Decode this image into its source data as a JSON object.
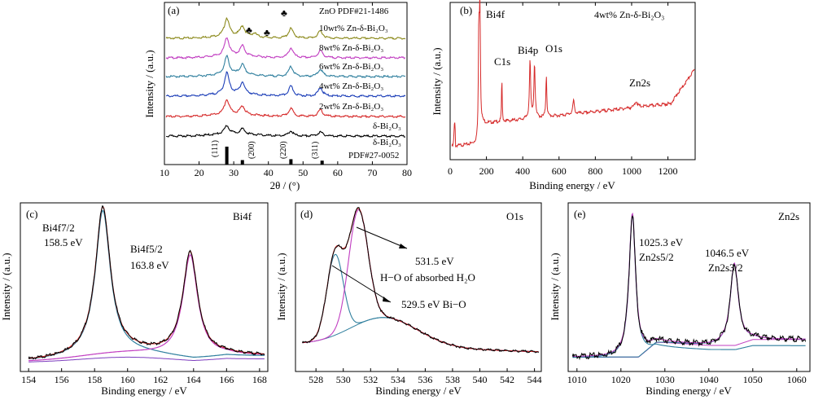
{
  "charts": {
    "a": {
      "panel": "(a)",
      "xlabel": "2θ / (°)",
      "ylabel": "Intensity / (a.u.)",
      "top_note": "ZnO PDF#21-1486",
      "x_ticks": [
        "10",
        "20",
        "30",
        "40",
        "50",
        "60",
        "70",
        "80"
      ],
      "marker": "♣",
      "labels": {
        "s10": "10wt% Zn-δ-Bi₂O₃",
        "s8": "8wt% Zn-δ-Bi₂O₃",
        "s6": "6wt% Zn-δ-Bi₂O₃",
        "s4": "4wt% Zn-δ-Bi₂O₃",
        "s2": "2wt% Zn-δ-Bi₂O₃",
        "s0": "δ-Bi₂O₃",
        "ref": "δ-Bi₂O₃",
        "pdf": "PDF#27-0052"
      },
      "hkl": [
        "(111)",
        "(200)",
        "(220)",
        "(311)"
      ]
    },
    "b": {
      "panel": "(b)",
      "title": "4wt% Zn-δ-Bi₂O₃",
      "xlabel": "Binding energy / eV",
      "ylabel": "Intensity / (a.u.)",
      "x_ticks": [
        "0",
        "200",
        "400",
        "600",
        "800",
        "1000",
        "1200"
      ],
      "peaks": {
        "bi4f": "Bi4f",
        "c1s": "C1s",
        "bi4p": "Bi4p",
        "o1s": "O1s",
        "zn2s": "Zn2s"
      }
    },
    "c": {
      "panel": "(c)",
      "title": "Bi4f",
      "xlabel": "Binding energy / eV",
      "ylabel": "Intensity / (a.u.)",
      "x_ticks": [
        "154",
        "156",
        "158",
        "160",
        "162",
        "164",
        "166",
        "168"
      ],
      "ann": {
        "p1_name": "Bi4f7/2",
        "p1_val": "158.5 eV",
        "p2_name": "Bi4f5/2",
        "p2_val": "163.8 eV"
      }
    },
    "d": {
      "panel": "(d)",
      "title": "O1s",
      "xlabel": "Binding energy / eV",
      "ylabel": "Intensity / (a.u.)",
      "x_ticks": [
        "528",
        "530",
        "532",
        "534",
        "536",
        "538",
        "540",
        "542",
        "544"
      ],
      "ann": {
        "a1": "531.5 eV",
        "a2": "H−O of absorbed H₂O",
        "a3": "529.5 eV Bi−O"
      }
    },
    "e": {
      "panel": "(e)",
      "title": "Zn2s",
      "xlabel": "Binding energy / eV",
      "ylabel": "Intensity / (a.u.)",
      "x_ticks": [
        "1010",
        "1020",
        "1030",
        "1040",
        "1050",
        "1060"
      ],
      "ann": {
        "p1_val": "1025.3 eV",
        "p1_name": "Zn2s5/2",
        "p2_val": "1046.5 eV",
        "p2_name": "Zn2s3/2"
      }
    }
  },
  "chart_data": [
    {
      "id": "a",
      "type": "line",
      "xlim": [
        10,
        80
      ],
      "series": [
        {
          "name": "10wt% Zn-δ-Bi₂O₃",
          "color": "#8c8a1c",
          "peaks": [
            [
              28,
              22
            ],
            [
              32.5,
              12
            ],
            [
              36,
              4
            ],
            [
              46.5,
              12
            ],
            [
              55,
              9
            ]
          ]
        },
        {
          "name": "8wt% Zn-δ-Bi₂O₃",
          "color": "#c13ec1",
          "peaks": [
            [
              28,
              22
            ],
            [
              32.5,
              12
            ],
            [
              46.5,
              12
            ],
            [
              55,
              9
            ]
          ]
        },
        {
          "name": "6wt% Zn-δ-Bi₂O₃",
          "color": "#2f7f9e",
          "peaks": [
            [
              28,
              22
            ],
            [
              32.5,
              12
            ],
            [
              46.5,
              12
            ],
            [
              55,
              9
            ]
          ]
        },
        {
          "name": "4wt% Zn-δ-Bi₂O₃",
          "color": "#1d3fb8",
          "peaks": [
            [
              28,
              26
            ],
            [
              32.5,
              14
            ],
            [
              46.5,
              12
            ],
            [
              55,
              10
            ]
          ]
        },
        {
          "name": "2wt% Zn-δ-Bi₂O₃",
          "color": "#d62a2a",
          "peaks": [
            [
              28,
              18
            ],
            [
              32.5,
              10
            ],
            [
              46.5,
              10
            ],
            [
              55,
              8
            ]
          ]
        },
        {
          "name": "δ-Bi₂O₃",
          "color": "#000000",
          "peaks": [
            [
              28,
              10
            ],
            [
              32.5,
              6
            ],
            [
              46.5,
              6
            ],
            [
              55,
              5
            ]
          ]
        }
      ],
      "reference": {
        "name": "PDF#27-0052",
        "positions": [
          28,
          32.5,
          46.5,
          55.5
        ],
        "heights": [
          1,
          0.25,
          0.3,
          0.22
        ]
      }
    },
    {
      "id": "b",
      "type": "line",
      "xlim": [
        0,
        1350
      ],
      "series": [
        {
          "name": "4wt% Zn-δ-Bi₂O₃",
          "color": "#d62a2a"
        }
      ],
      "labels": [
        {
          "text": "Bi4f",
          "x": 160
        },
        {
          "text": "C1s",
          "x": 285
        },
        {
          "text": "Bi4p",
          "x": 440
        },
        {
          "text": "O1s",
          "x": 530
        },
        {
          "text": "Zn2s",
          "x": 1025
        }
      ]
    },
    {
      "id": "c",
      "type": "line",
      "xlim": [
        153.5,
        168.5
      ],
      "peaks": [
        {
          "name": "Bi4f7/2",
          "x": 158.5
        },
        {
          "name": "Bi4f5/2",
          "x": 163.8
        }
      ]
    },
    {
      "id": "d",
      "type": "line",
      "xlim": [
        526.5,
        544.5
      ],
      "peaks": [
        {
          "name": "Bi−O",
          "x": 529.5
        },
        {
          "name": "H−O of absorbed H₂O",
          "x": 531.5
        }
      ]
    },
    {
      "id": "e",
      "type": "line",
      "xlim": [
        1008,
        1063
      ],
      "peaks": [
        {
          "name": "Zn2s5/2",
          "x": 1025.3
        },
        {
          "name": "Zn2s3/2",
          "x": 1046.5
        }
      ]
    }
  ]
}
